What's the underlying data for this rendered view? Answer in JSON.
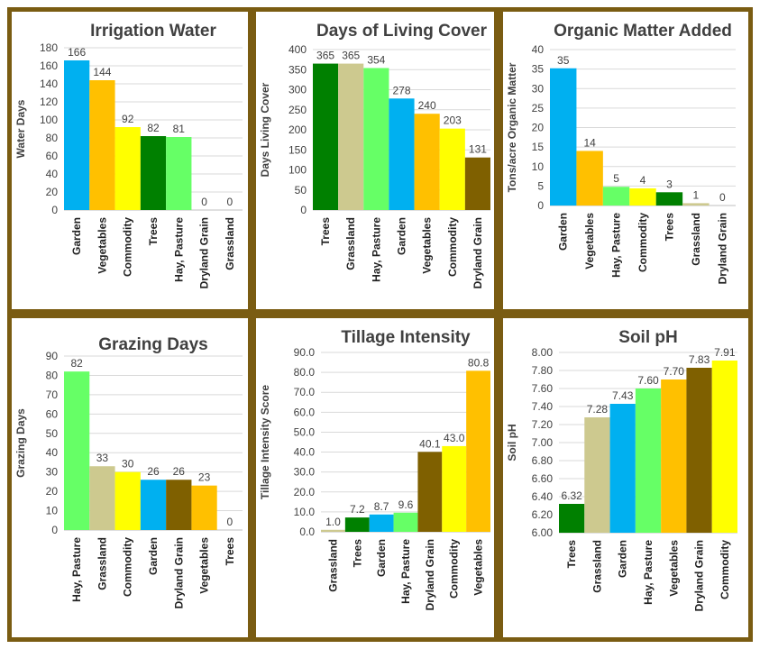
{
  "colors": {
    "Garden": "#00b0f0",
    "Vegetables": "#ffc000",
    "Commodity": "#ffff00",
    "Trees": "#008000",
    "Hay, Pasture": "#66ff66",
    "Dryland Grain": "#7f6000",
    "Grassland": "#cdc98f",
    "border": "#7a5c12"
  },
  "chart_data": [
    {
      "type": "bar",
      "title": "Irrigation Water",
      "ylabel": "Water Days",
      "categories": [
        "Garden",
        "Vegetables",
        "Commodity",
        "Trees",
        "Hay, Pasture",
        "Dryland Grain",
        "Grassland"
      ],
      "values": [
        166,
        144,
        92,
        82,
        81,
        0,
        0
      ],
      "value_labels": [
        "166",
        "144",
        "92",
        "82",
        "81",
        "0",
        "0"
      ],
      "ylim": [
        0,
        180
      ],
      "yticks": [
        "0",
        "20",
        "40",
        "60",
        "80",
        "100",
        "120",
        "140",
        "160",
        "180"
      ]
    },
    {
      "type": "bar",
      "title": "Days of Living Cover",
      "ylabel": "Days Living Cover",
      "categories": [
        "Trees",
        "Grassland",
        "Hay, Pasture",
        "Garden",
        "Vegetables",
        "Commodity",
        "Dryland Grain"
      ],
      "values": [
        365,
        365,
        354,
        278,
        240,
        203,
        131
      ],
      "value_labels": [
        "365",
        "365",
        "354",
        "278",
        "240",
        "203",
        "131"
      ],
      "ylim": [
        0,
        400
      ],
      "yticks": [
        "0",
        "50",
        "100",
        "150",
        "200",
        "250",
        "300",
        "350",
        "400"
      ]
    },
    {
      "type": "bar",
      "title": "Organic Matter Added",
      "ylabel": "Tons/acre Organic Matter",
      "categories": [
        "Garden",
        "Vegetables",
        "Hay, Pasture",
        "Commodity",
        "Trees",
        "Grassland",
        "Dryland Grain"
      ],
      "values": [
        35,
        14,
        5,
        4,
        3,
        1,
        0
      ],
      "plot_values": [
        35.2,
        14,
        4.8,
        4.4,
        3.4,
        0.6,
        0
      ],
      "value_labels": [
        "35",
        "14",
        "5",
        "4",
        "3",
        "1",
        "0"
      ],
      "ylim": [
        0,
        40
      ],
      "yticks": [
        "0",
        "5",
        "10",
        "15",
        "20",
        "25",
        "30",
        "35",
        "40"
      ]
    },
    {
      "type": "bar",
      "title": "Grazing Days",
      "ylabel": "Grazing Days",
      "categories": [
        "Hay, Pasture",
        "Grassland",
        "Commodity",
        "Garden",
        "Dryland Grain",
        "Vegetables",
        "Trees"
      ],
      "values": [
        82,
        33,
        30,
        26,
        26,
        23,
        0
      ],
      "value_labels": [
        "82",
        "33",
        "30",
        "26",
        "26",
        "23",
        "0"
      ],
      "ylim": [
        0,
        90
      ],
      "yticks": [
        "0",
        "10",
        "20",
        "30",
        "40",
        "50",
        "60",
        "70",
        "80",
        "90"
      ]
    },
    {
      "type": "bar",
      "title": "Tillage Intensity",
      "ylabel": "Tillage Intensity Score",
      "categories": [
        "Grassland",
        "Trees",
        "Garden",
        "Hay, Pasture",
        "Dryland Grain",
        "Commodity",
        "Vegetables"
      ],
      "values": [
        1.0,
        7.2,
        8.7,
        9.6,
        40.1,
        43.0,
        80.8
      ],
      "value_labels": [
        "1.0",
        "7.2",
        "8.7",
        "9.6",
        "40.1",
        "43.0",
        "80.8"
      ],
      "ylim": [
        0,
        90
      ],
      "yticks": [
        "0.0",
        "10.0",
        "20.0",
        "30.0",
        "40.0",
        "50.0",
        "60.0",
        "70.0",
        "80.0",
        "90.0"
      ]
    },
    {
      "type": "bar",
      "title": "Soil pH",
      "ylabel": "Soil pH",
      "categories": [
        "Trees",
        "Grassland",
        "Garden",
        "Hay, Pasture",
        "Vegetables",
        "Dryland Grain",
        "Commodity"
      ],
      "values": [
        6.32,
        7.28,
        7.43,
        7.6,
        7.7,
        7.83,
        7.91
      ],
      "value_labels": [
        "6.32",
        "7.28",
        "7.43",
        "7.60",
        "7.70",
        "7.83",
        "7.91"
      ],
      "ylim": [
        6.0,
        8.0
      ],
      "yticks": [
        "6.00",
        "6.20",
        "6.40",
        "6.60",
        "6.80",
        "7.00",
        "7.20",
        "7.40",
        "7.60",
        "7.80",
        "8.00"
      ]
    }
  ]
}
